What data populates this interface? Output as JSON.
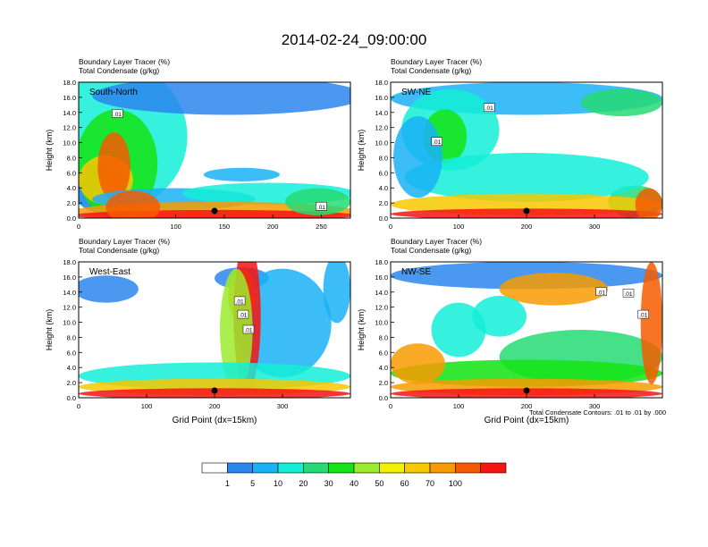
{
  "title": "2014-02-24_09:00:00",
  "footnote": "Total Condensate Contours: .01 to .01 by .000",
  "colorbar": {
    "colors": [
      "#ffffff",
      "#2b86ef",
      "#1ab2f7",
      "#13eed7",
      "#26db73",
      "#13e413",
      "#9bea2e",
      "#f1f100",
      "#f8c800",
      "#f89b00",
      "#f65a00",
      "#f61414"
    ],
    "labels": [
      "1",
      "5",
      "10",
      "20",
      "30",
      "40",
      "50",
      "60",
      "70",
      "100"
    ]
  },
  "chart_data": [
    {
      "type": "heatmap",
      "panel_label": "South-North",
      "header_line1": "Boundary Layer Tracer   (%)",
      "header_line2": "Total Condensate   (g/kg)",
      "xlabel": "",
      "ylabel": "Height (km)",
      "xlim": [
        0,
        280
      ],
      "ylim": [
        0,
        18
      ],
      "xticks": [
        "0",
        "100",
        "150",
        "200",
        "250"
      ],
      "xtick_values": [
        0,
        100,
        150,
        200,
        250
      ],
      "yticks": [
        "0.0",
        "2.0",
        "4.0",
        "6.0",
        "8.0",
        "10.0",
        "12.0",
        "14.0",
        "16.0",
        "18.0"
      ],
      "marker_x": 140,
      "contour_labels": [
        {
          "text": ".01",
          "x": 40,
          "y": 13.8
        },
        {
          "text": ".01",
          "x": 250,
          "y": 1.5
        }
      ]
    },
    {
      "type": "heatmap",
      "panel_label": "SW-NE",
      "header_line1": "Boundary Layer Tracer   (%)",
      "header_line2": "Total Condensate   (g/kg)",
      "xlabel": "",
      "ylabel": "Height (km)",
      "xlim": [
        0,
        400
      ],
      "ylim": [
        0,
        18
      ],
      "xticks": [
        "0",
        "100",
        "200",
        "300"
      ],
      "xtick_values": [
        0,
        100,
        200,
        300
      ],
      "yticks": [
        "0.0",
        "2.0",
        "4.0",
        "6.0",
        "8.0",
        "10.0",
        "12.0",
        "14.0",
        "16.0",
        "18.0"
      ],
      "marker_x": 200,
      "contour_labels": [
        {
          "text": ".01",
          "x": 145,
          "y": 14.6
        },
        {
          "text": ".01",
          "x": 68,
          "y": 10.1
        }
      ]
    },
    {
      "type": "heatmap",
      "panel_label": "West-East",
      "header_line1": "Boundary Layer Tracer   (%)",
      "header_line2": "Total Condensate   (g/kg)",
      "xlabel": "Grid Point (dx=15km)",
      "ylabel": "Height (km)",
      "xlim": [
        0,
        400
      ],
      "ylim": [
        0,
        18
      ],
      "xticks": [
        "0",
        "100",
        "200",
        "300"
      ],
      "xtick_values": [
        0,
        100,
        200,
        300
      ],
      "yticks": [
        "0.0",
        "2.0",
        "4.0",
        "6.0",
        "8.0",
        "10.0",
        "12.0",
        "14.0",
        "16.0",
        "18.0"
      ],
      "marker_x": 200,
      "contour_labels": [
        {
          "text": ".01",
          "x": 237,
          "y": 12.8
        },
        {
          "text": ".01",
          "x": 242,
          "y": 11.0
        },
        {
          "text": ".01",
          "x": 250,
          "y": 9.0
        }
      ]
    },
    {
      "type": "heatmap",
      "panel_label": "NW-SE",
      "header_line1": "Boundary Layer Tracer   (%)",
      "header_line2": "Total Condensate   (g/kg)",
      "xlabel": "Grid Point (dx=15km)",
      "ylabel": "Height (km)",
      "xlim": [
        0,
        400
      ],
      "ylim": [
        0,
        18
      ],
      "xticks": [
        "0",
        "100",
        "200",
        "300"
      ],
      "xtick_values": [
        0,
        100,
        200,
        300
      ],
      "yticks": [
        "0.0",
        "2.0",
        "4.0",
        "6.0",
        "8.0",
        "10.0",
        "12.0",
        "14.0",
        "16.0",
        "18.0"
      ],
      "marker_x": 200,
      "contour_labels": [
        {
          "text": ".01",
          "x": 310,
          "y": 14.0
        },
        {
          "text": ".01",
          "x": 350,
          "y": 13.8
        },
        {
          "text": ".01",
          "x": 372,
          "y": 11.0
        }
      ]
    }
  ]
}
